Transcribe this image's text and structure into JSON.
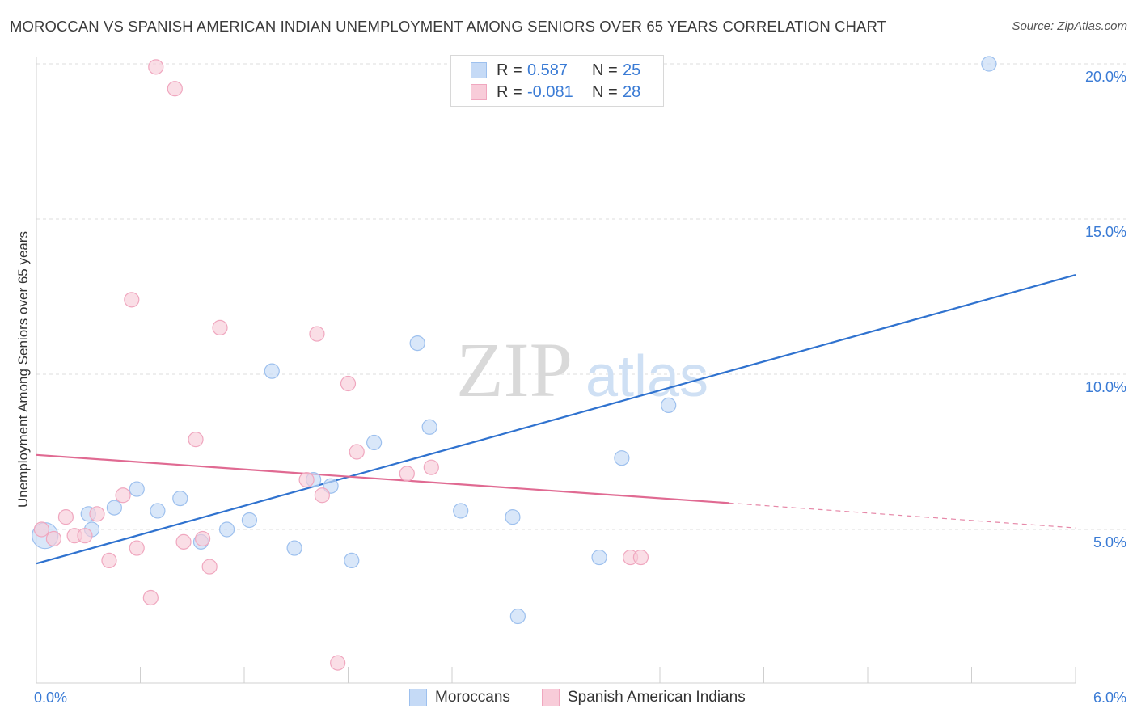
{
  "title": "MOROCCAN VS SPANISH AMERICAN INDIAN UNEMPLOYMENT AMONG SENIORS OVER 65 YEARS CORRELATION CHART",
  "source": "Source: ZipAtlas.com",
  "watermark": {
    "zip": "ZIP",
    "atlas": "atlas"
  },
  "legend": {
    "r_label": "R =",
    "n_label": "N =",
    "series": [
      {
        "name": "Moroccans",
        "r": "0.587",
        "n": "25",
        "color": "#9dc0ee",
        "fill": "#c5daf6",
        "line": "#2f72cf"
      },
      {
        "name": "Spanish American Indians",
        "r": "-0.081",
        "n": "28",
        "color": "#f0a7bf",
        "fill": "#f8ccd9",
        "line": "#e06a92"
      }
    ]
  },
  "chart_data": {
    "type": "scatter",
    "title": "MOROCCAN VS SPANISH AMERICAN INDIAN UNEMPLOYMENT AMONG SENIORS OVER 65 YEARS CORRELATION CHART",
    "xlabel": "",
    "ylabel": "Unemployment Among Seniors over 65 years",
    "xlim": [
      0,
      6
    ],
    "ylim": [
      0,
      20.5
    ],
    "x_tick_labels": [
      "0.0%",
      "6.0%"
    ],
    "y_ticks": [
      5,
      10,
      15,
      20
    ],
    "y_tick_labels": [
      "5.0%",
      "10.0%",
      "15.0%",
      "20.0%"
    ],
    "grid": true,
    "series": [
      {
        "name": "Moroccans",
        "points": [
          [
            0.05,
            4.8
          ],
          [
            0.3,
            5.5
          ],
          [
            0.32,
            5.0
          ],
          [
            0.45,
            5.7
          ],
          [
            0.58,
            6.3
          ],
          [
            0.7,
            5.6
          ],
          [
            0.83,
            6.0
          ],
          [
            0.95,
            4.6
          ],
          [
            1.1,
            5.0
          ],
          [
            1.23,
            5.3
          ],
          [
            1.36,
            10.1
          ],
          [
            1.49,
            4.4
          ],
          [
            1.6,
            6.6
          ],
          [
            1.7,
            6.4
          ],
          [
            1.82,
            4.0
          ],
          [
            1.95,
            7.8
          ],
          [
            2.2,
            11.0
          ],
          [
            2.27,
            8.3
          ],
          [
            2.45,
            5.6
          ],
          [
            2.75,
            5.4
          ],
          [
            2.78,
            2.2
          ],
          [
            3.25,
            4.1
          ],
          [
            3.38,
            7.3
          ],
          [
            3.65,
            9.0
          ],
          [
            5.5,
            20.0
          ]
        ],
        "trend": {
          "x": [
            0,
            6
          ],
          "y": [
            3.9,
            13.2
          ]
        }
      },
      {
        "name": "Spanish American Indians",
        "points": [
          [
            0.03,
            5.0
          ],
          [
            0.1,
            4.7
          ],
          [
            0.17,
            5.4
          ],
          [
            0.22,
            4.8
          ],
          [
            0.28,
            4.8
          ],
          [
            0.35,
            5.5
          ],
          [
            0.42,
            4.0
          ],
          [
            0.5,
            6.1
          ],
          [
            0.55,
            12.4
          ],
          [
            0.58,
            4.4
          ],
          [
            0.66,
            2.8
          ],
          [
            0.69,
            19.9
          ],
          [
            0.8,
            19.2
          ],
          [
            0.85,
            4.6
          ],
          [
            0.92,
            7.9
          ],
          [
            0.96,
            4.7
          ],
          [
            1.0,
            3.8
          ],
          [
            1.06,
            11.5
          ],
          [
            1.56,
            6.6
          ],
          [
            1.62,
            11.3
          ],
          [
            1.65,
            6.1
          ],
          [
            1.74,
            0.7
          ],
          [
            1.8,
            9.7
          ],
          [
            1.85,
            7.5
          ],
          [
            2.14,
            6.8
          ],
          [
            2.28,
            7.0
          ],
          [
            3.43,
            4.1
          ],
          [
            3.49,
            4.1
          ]
        ],
        "trend": {
          "x": [
            0,
            4.0
          ],
          "y": [
            7.4,
            5.85
          ]
        },
        "trend_extension": {
          "x": [
            4.0,
            6.0
          ],
          "y": [
            5.85,
            5.05
          ]
        }
      }
    ]
  }
}
